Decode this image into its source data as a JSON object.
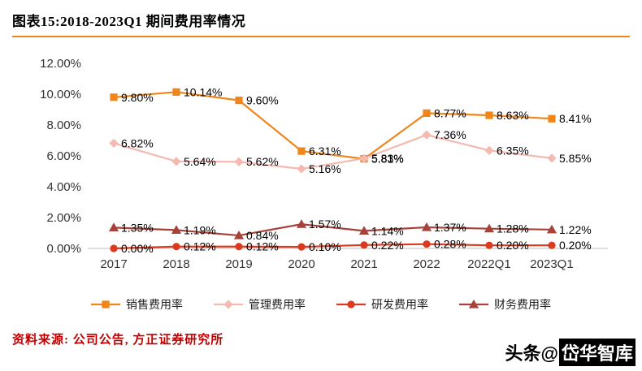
{
  "header": {
    "title": "图表15:2018-2023Q1 期间费用率情况"
  },
  "chart_data": {
    "type": "line",
    "title": "图表15:2018-2023Q1 期间费用率情况",
    "categories": [
      "2017",
      "2018",
      "2019",
      "2020",
      "2021",
      "2022",
      "2022Q1",
      "2023Q1"
    ],
    "series": [
      {
        "name": "销售费用率",
        "color": "#F08519",
        "marker": "square",
        "values": [
          9.8,
          10.14,
          9.6,
          6.31,
          5.81,
          8.77,
          8.63,
          8.41
        ]
      },
      {
        "name": "管理费用率",
        "color": "#F4B9B1",
        "marker": "diamond",
        "values": [
          6.82,
          5.64,
          5.62,
          5.16,
          5.83,
          7.36,
          6.35,
          5.85
        ]
      },
      {
        "name": "研发费用率",
        "color": "#DA3B1F",
        "marker": "circle",
        "values": [
          0.0,
          0.12,
          0.12,
          0.1,
          0.22,
          0.28,
          0.2,
          0.2
        ]
      },
      {
        "name": "财务费用率",
        "color": "#A7423A",
        "marker": "triangle",
        "values": [
          1.35,
          1.19,
          0.84,
          1.57,
          1.14,
          1.37,
          1.28,
          1.22
        ]
      }
    ],
    "ylim": [
      0,
      12
    ],
    "y_ticks": [
      "0.00%",
      "2.00%",
      "4.00%",
      "6.00%",
      "8.00%",
      "10.00%",
      "12.00%"
    ],
    "grid": false,
    "legend_position": "bottom",
    "data_label_format": "0.00%"
  },
  "footer": {
    "source": "资料来源: 公司公告, 方正证券研究所"
  },
  "watermark": {
    "prefix": "头条@",
    "name": "岱华智库"
  },
  "colors": {
    "accent": "#F08519",
    "source_red": "#C00000",
    "axis_line": "#BFBFBF"
  }
}
